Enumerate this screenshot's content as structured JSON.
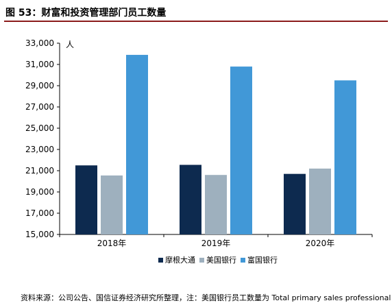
{
  "figure_title": "图 53：财富和投资管理部门员工数量",
  "source_note": "资料来源：公司公告、国信证券经济研究所整理，注：美国银行员工数量为 Total primary sales professionals,",
  "chart_data": {
    "type": "bar",
    "title": "",
    "xlabel": "",
    "ylabel": "人",
    "categories": [
      "2018年",
      "2019年",
      "2020年"
    ],
    "ylim": [
      15000,
      33000
    ],
    "yticks": [
      15000,
      17000,
      19000,
      21000,
      23000,
      25000,
      27000,
      29000,
      31000,
      33000
    ],
    "ytick_labels": [
      "15,000",
      "17,000",
      "19,000",
      "21,000",
      "23,000",
      "25,000",
      "27,000",
      "29,000",
      "31,000",
      "33,000"
    ],
    "grid": false,
    "legend_position": "bottom",
    "series": [
      {
        "name": "摩根大通",
        "color": "#0d2a4f",
        "values": [
          21500,
          21550,
          20700
        ]
      },
      {
        "name": "美国银行",
        "color": "#9eb0be",
        "values": [
          20550,
          20600,
          21200
        ]
      },
      {
        "name": "富国银行",
        "color": "#4198d7",
        "values": [
          31900,
          30800,
          29500
        ]
      }
    ]
  }
}
